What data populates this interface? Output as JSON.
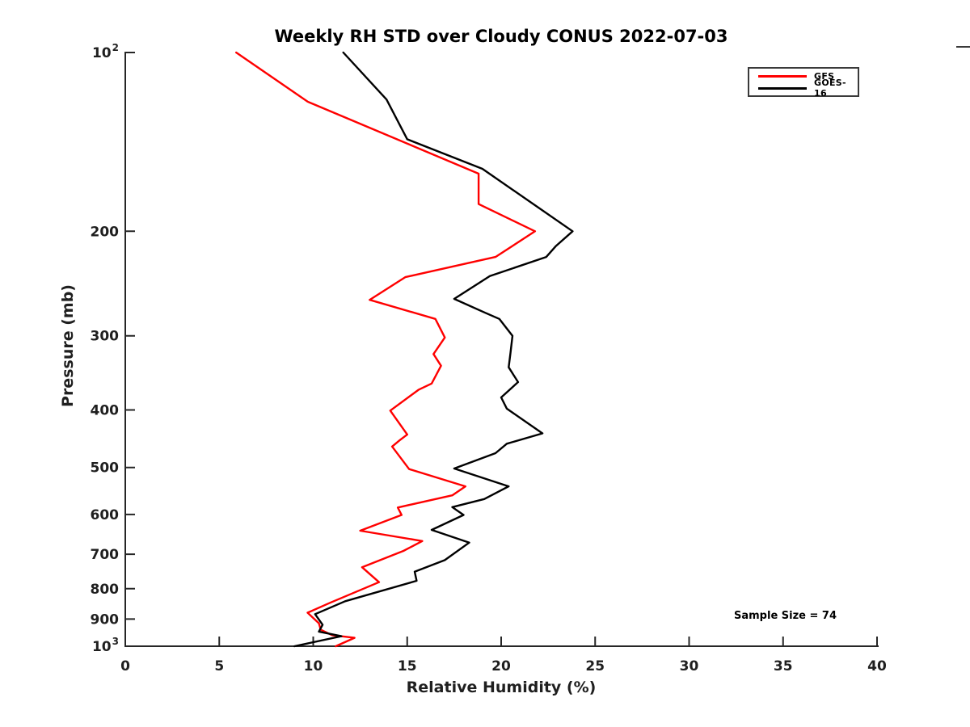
{
  "chart_data": {
    "type": "line",
    "title": "Weekly RH STD over Cloudy CONUS 2022-07-03",
    "xlabel": "Relative Humidity (%)",
    "ylabel": "Pressure (mb)",
    "xlim": [
      0,
      40
    ],
    "ylim": [
      100,
      1000
    ],
    "y_scale": "log10",
    "y_direction": "increasing-downward",
    "grid": false,
    "legend_position": "top-right",
    "annotation": "Sample Size = 74",
    "axis_color": "#262626",
    "x_ticks": [
      0,
      5,
      10,
      15,
      20,
      25,
      30,
      35,
      40
    ],
    "y_ticks": [
      {
        "value": 100,
        "label": "10^2"
      },
      {
        "value": 200,
        "label": "200"
      },
      {
        "value": 300,
        "label": "300"
      },
      {
        "value": 400,
        "label": "400"
      },
      {
        "value": 500,
        "label": "500"
      },
      {
        "value": 600,
        "label": "600"
      },
      {
        "value": 700,
        "label": "700"
      },
      {
        "value": 800,
        "label": "800"
      },
      {
        "value": 900,
        "label": "900"
      },
      {
        "value": 1000,
        "label": "10^3"
      }
    ],
    "series": [
      {
        "name": "GFS",
        "color": "#ff0000",
        "points": [
          [
            5.9,
            100
          ],
          [
            9.7,
            121
          ],
          [
            18.8,
            160
          ],
          [
            18.8,
            180
          ],
          [
            21.8,
            200
          ],
          [
            19.7,
            221
          ],
          [
            14.9,
            239
          ],
          [
            13.0,
            261
          ],
          [
            16.5,
            281
          ],
          [
            17.0,
            302
          ],
          [
            16.4,
            322
          ],
          [
            16.8,
            337
          ],
          [
            16.3,
            361
          ],
          [
            15.6,
            370
          ],
          [
            14.1,
            401
          ],
          [
            15.0,
            440
          ],
          [
            14.6,
            450
          ],
          [
            14.2,
            461
          ],
          [
            15.1,
            503
          ],
          [
            18.1,
            538
          ],
          [
            17.4,
            557
          ],
          [
            14.5,
            584
          ],
          [
            14.7,
            601
          ],
          [
            12.5,
            639
          ],
          [
            15.8,
            665
          ],
          [
            14.8,
            691
          ],
          [
            12.6,
            736
          ],
          [
            13.5,
            780
          ],
          [
            10.9,
            845
          ],
          [
            9.7,
            878
          ],
          [
            10.3,
            915
          ],
          [
            10.4,
            938
          ],
          [
            11.0,
            958
          ],
          [
            12.2,
            968
          ],
          [
            11.2,
            1000
          ]
        ]
      },
      {
        "name": "GOES-16",
        "color": "#000000",
        "points": [
          [
            11.6,
            100
          ],
          [
            13.9,
            120
          ],
          [
            15.0,
            140
          ],
          [
            19.0,
            157
          ],
          [
            23.8,
            200
          ],
          [
            22.9,
            212
          ],
          [
            22.4,
            221
          ],
          [
            19.4,
            238
          ],
          [
            17.5,
            260
          ],
          [
            19.1,
            274
          ],
          [
            19.9,
            281
          ],
          [
            20.6,
            300
          ],
          [
            20.5,
            320
          ],
          [
            20.4,
            339
          ],
          [
            20.9,
            359
          ],
          [
            20.0,
            381
          ],
          [
            20.3,
            398
          ],
          [
            22.2,
            438
          ],
          [
            20.3,
            456
          ],
          [
            19.7,
            473
          ],
          [
            17.5,
            502
          ],
          [
            20.4,
            538
          ],
          [
            19.1,
            565
          ],
          [
            17.4,
            583
          ],
          [
            18.0,
            601
          ],
          [
            16.3,
            637
          ],
          [
            18.3,
            669
          ],
          [
            17.0,
            716
          ],
          [
            15.4,
            749
          ],
          [
            15.5,
            776
          ],
          [
            11.7,
            840
          ],
          [
            10.1,
            883
          ],
          [
            10.5,
            920
          ],
          [
            10.3,
            945
          ],
          [
            11.5,
            962
          ],
          [
            9.0,
            1000
          ]
        ]
      }
    ]
  }
}
